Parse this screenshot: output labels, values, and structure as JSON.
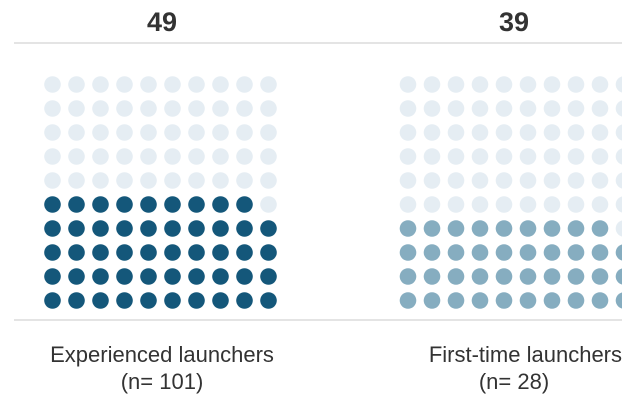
{
  "chart_data": {
    "type": "waffle",
    "grid_rows": 10,
    "grid_columns": 10,
    "total_cells": 100,
    "panels": [
      {
        "value": 49,
        "value_label": "49",
        "label": "Experienced launchers",
        "sublabel": "(n= 101)",
        "filled_color": "#14577a",
        "empty_color": "#e5edf3"
      },
      {
        "value": 39,
        "value_label": "39",
        "label": "First-time launchers",
        "sublabel": "(n= 28)",
        "filled_color": "#86adc0",
        "empty_color": "#e5edf3"
      }
    ]
  }
}
